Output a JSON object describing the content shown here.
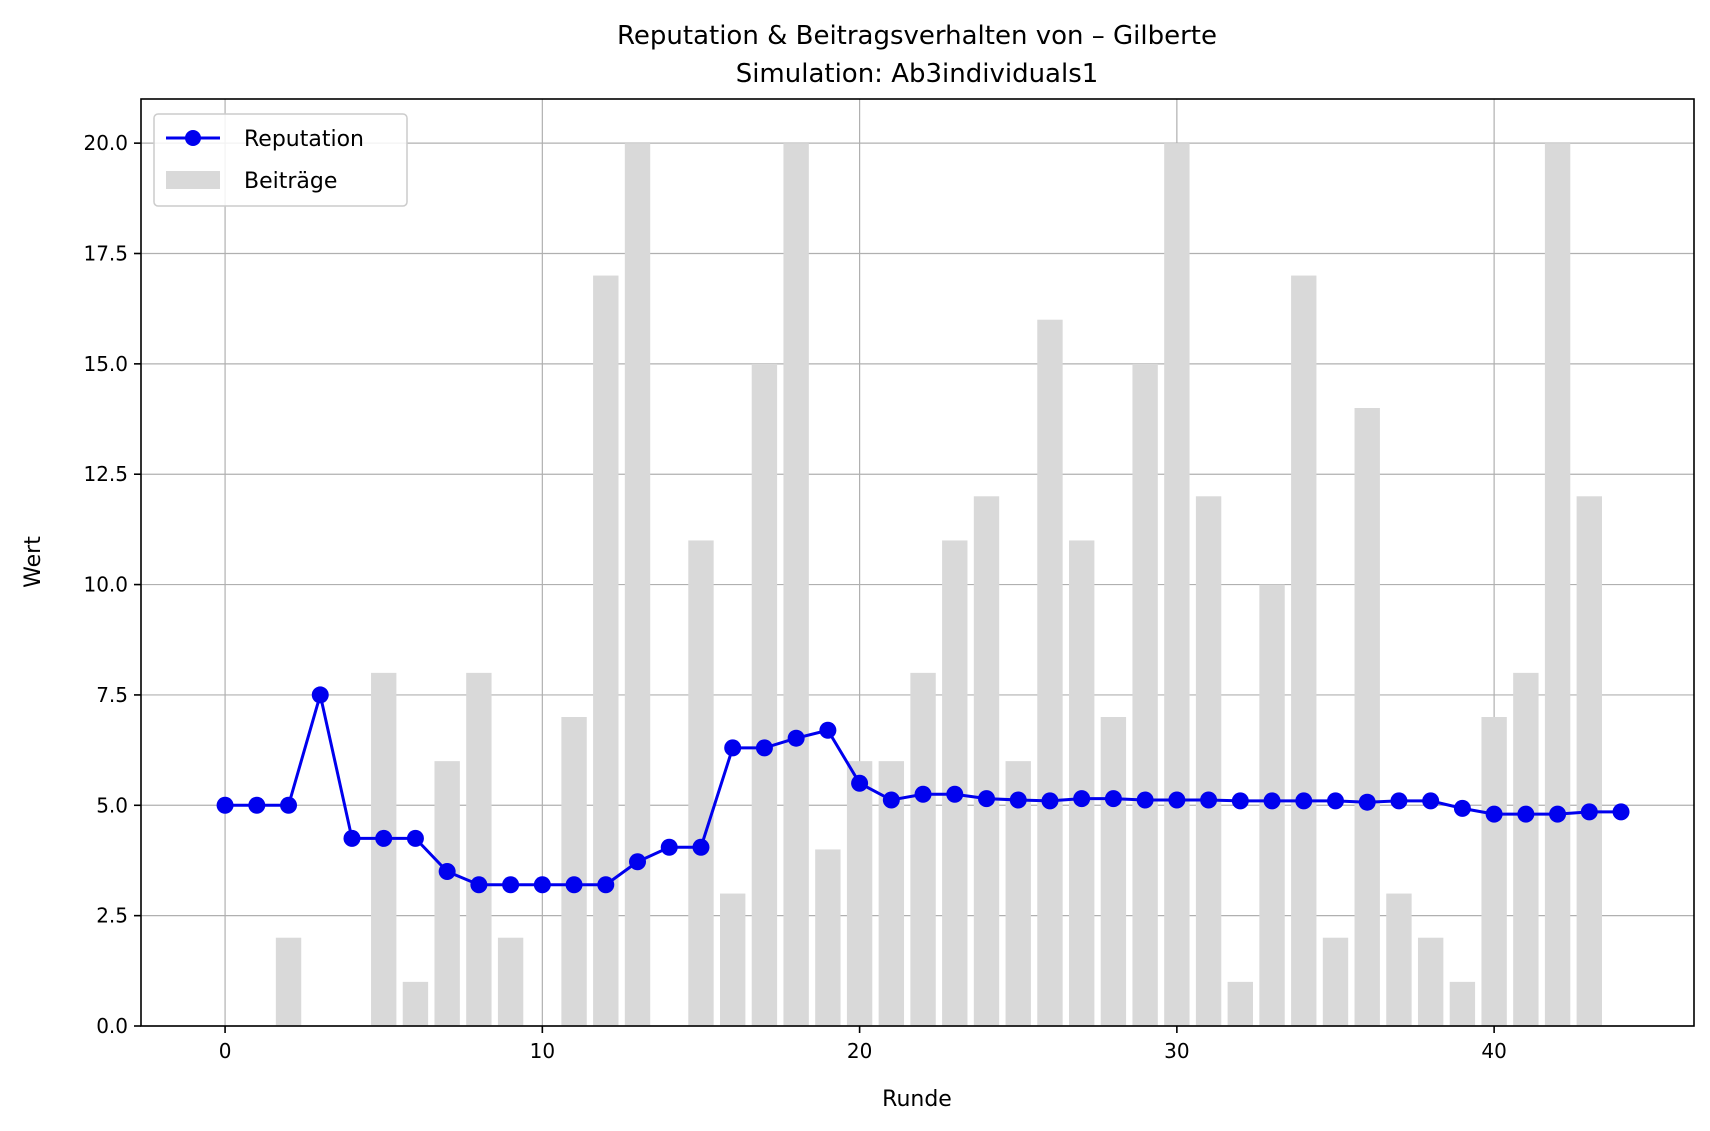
{
  "chart_data": {
    "type": "bar",
    "title": "Reputation & Beitragsverhalten von – Gilberte",
    "subtitle": "Simulation: Ab3individuals1",
    "xlabel": "Runde",
    "ylabel": "Wert",
    "xlim": [
      -2.65,
      46.3
    ],
    "ylim": [
      0,
      21
    ],
    "x_ticks": [
      0,
      10,
      20,
      30,
      40
    ],
    "y_ticks": [
      0,
      2.5,
      5,
      7.5,
      10,
      12.5,
      15,
      17.5,
      20
    ],
    "x_tick_labels": [
      "0",
      "10",
      "20",
      "30",
      "40"
    ],
    "y_tick_labels": [
      "0.0",
      "2.5",
      "5.0",
      "7.5",
      "10.0",
      "12.5",
      "15.0",
      "17.5",
      "20.0"
    ],
    "grid": true,
    "legend_position": "top-left",
    "x": [
      0,
      1,
      2,
      3,
      4,
      5,
      6,
      7,
      8,
      9,
      10,
      11,
      12,
      13,
      14,
      15,
      16,
      17,
      18,
      19,
      20,
      21,
      22,
      23,
      24,
      25,
      26,
      27,
      28,
      29,
      30,
      31,
      32,
      33,
      34,
      35,
      36,
      37,
      38,
      39,
      40,
      41,
      42,
      43,
      44
    ],
    "series": [
      {
        "name": "Beiträge",
        "kind": "bar",
        "color": "#d9d9d9",
        "values": [
          0,
          0,
          2,
          0,
          0,
          8,
          1,
          6,
          8,
          2,
          0,
          7,
          17,
          20,
          0,
          11,
          3,
          15,
          20,
          4,
          6,
          6,
          8,
          11,
          12,
          6,
          16,
          11,
          7,
          15,
          20,
          12,
          1,
          10,
          17,
          2,
          14,
          3,
          2,
          1,
          7,
          8,
          20,
          12,
          0
        ]
      },
      {
        "name": "Reputation",
        "kind": "line",
        "color": "#0000ee",
        "values": [
          5.0,
          5.0,
          5.0,
          7.5,
          4.25,
          4.25,
          4.25,
          3.5,
          3.2,
          3.2,
          3.2,
          3.2,
          3.2,
          3.72,
          4.05,
          4.05,
          6.3,
          6.3,
          6.52,
          6.7,
          5.5,
          5.12,
          5.25,
          5.25,
          5.15,
          5.12,
          5.1,
          5.15,
          5.15,
          5.12,
          5.12,
          5.12,
          5.1,
          5.1,
          5.1,
          5.1,
          5.07,
          5.1,
          5.1,
          4.93,
          4.8,
          4.8,
          4.8,
          4.85,
          4.85
        ]
      }
    ]
  }
}
